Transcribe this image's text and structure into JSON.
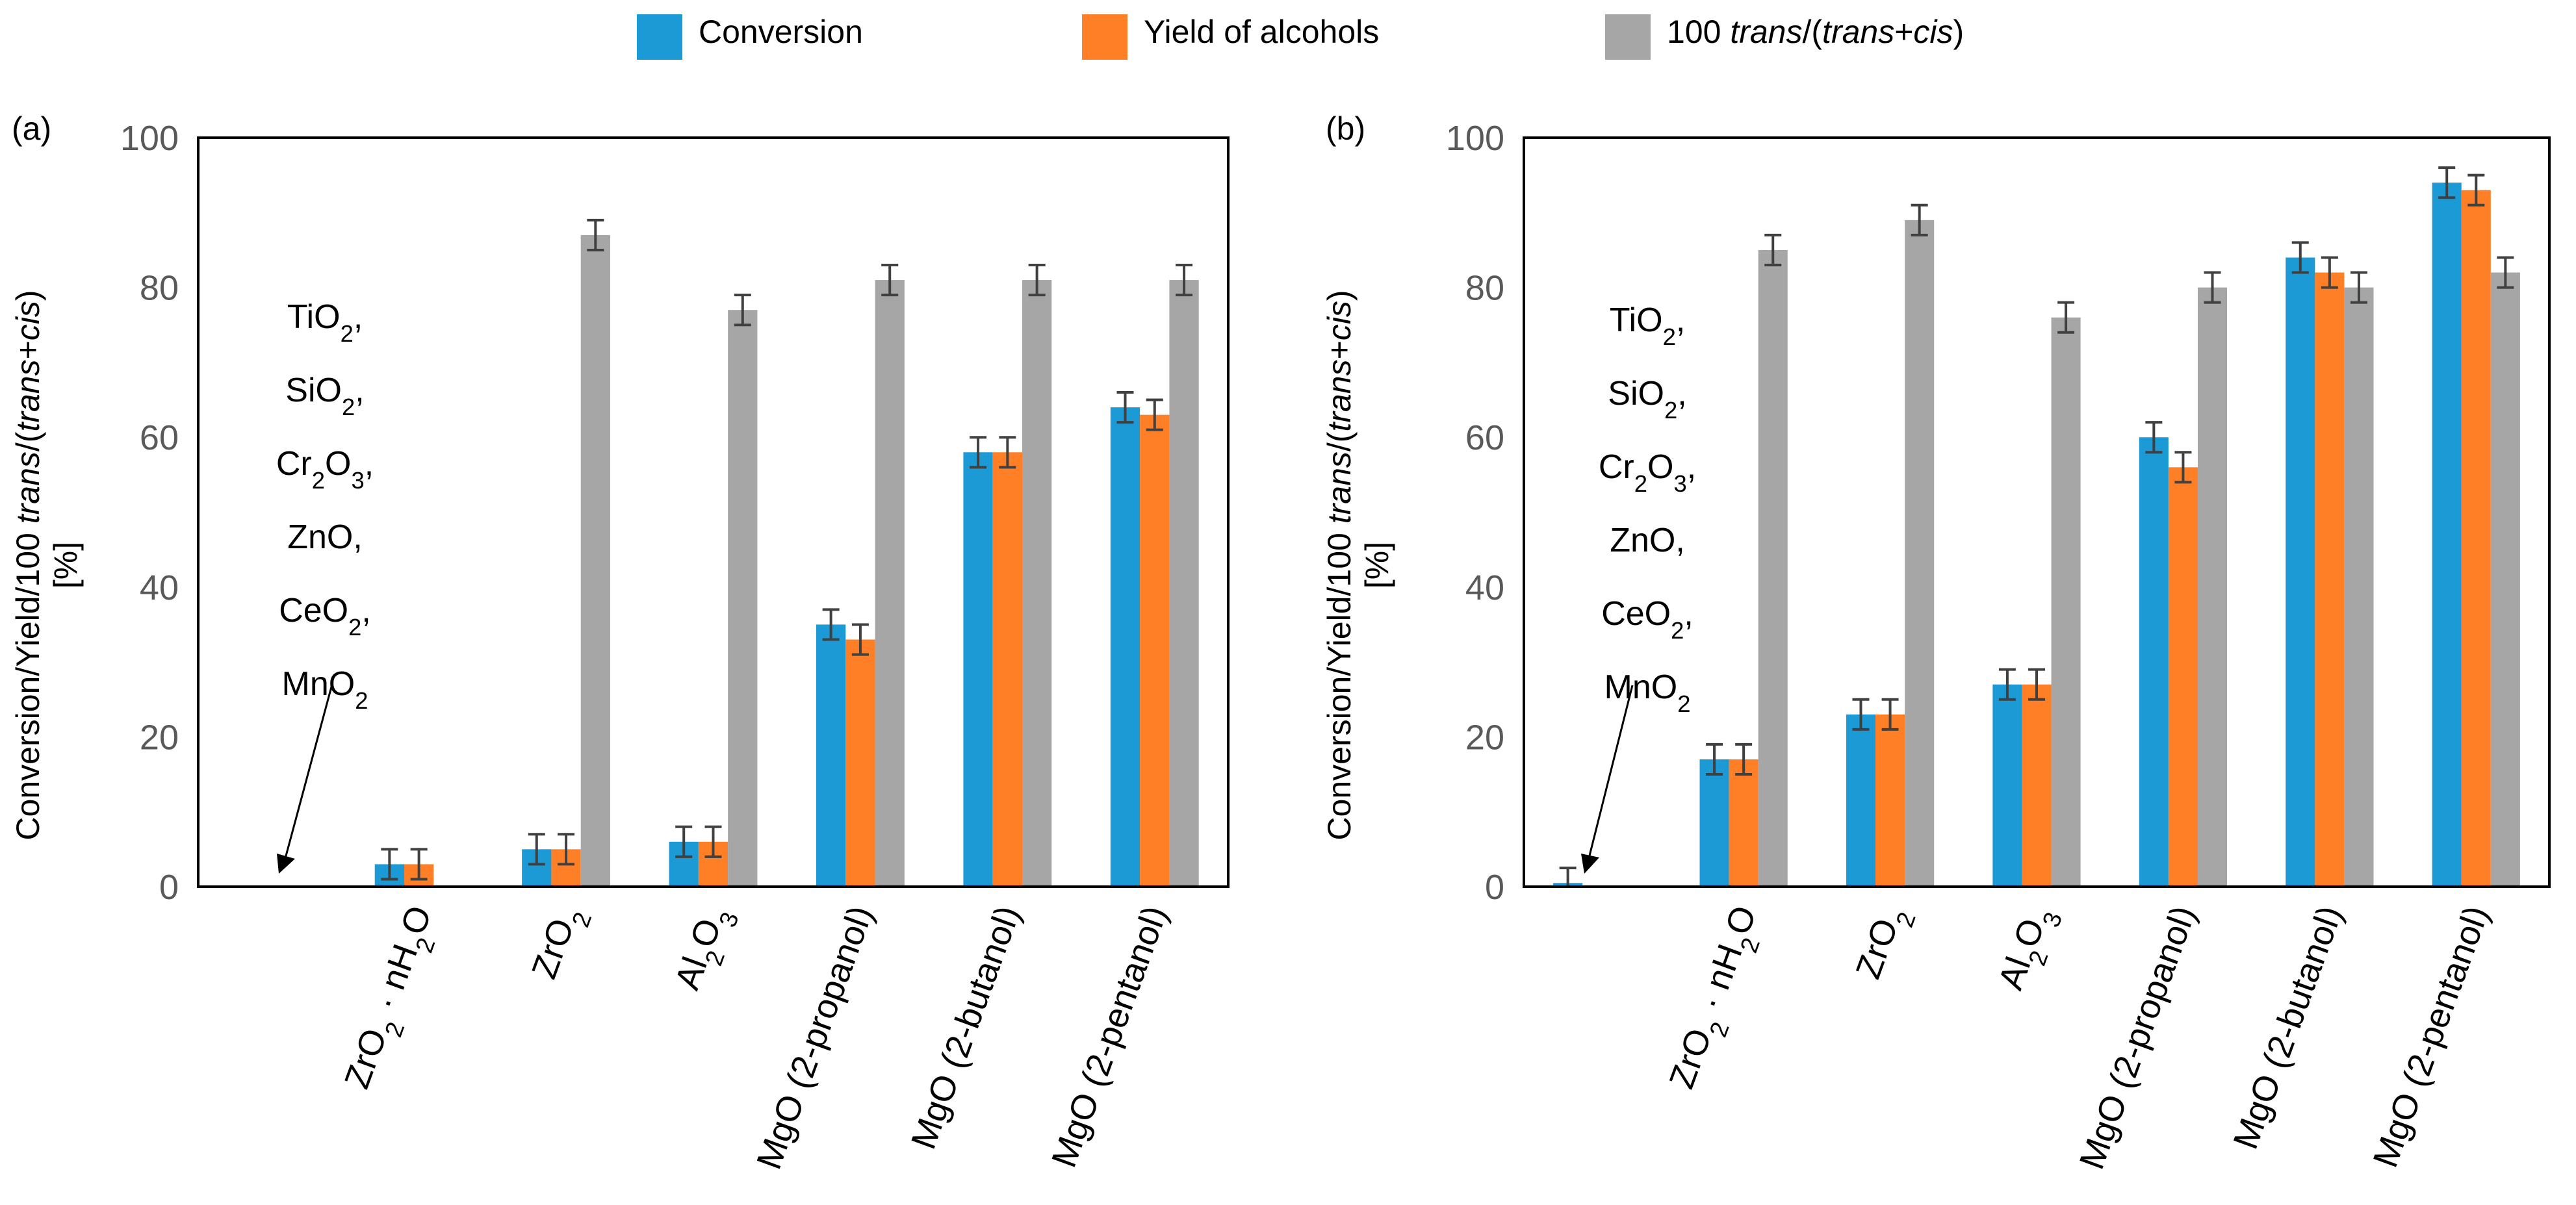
{
  "legend": [
    {
      "key": "conversion",
      "label": "Conversion",
      "color": "#1B9AD6"
    },
    {
      "key": "yield",
      "label": "Yield of alcohols",
      "color": "#FF7F27"
    },
    {
      "key": "ratio",
      "label_prefix": "100 ",
      "label_italic1": "trans",
      "label_mid": "/(",
      "label_italic2": "trans",
      "label_plus": "+",
      "label_italic3": "cis",
      "label_end": ")",
      "color": "#A6A6A6"
    }
  ],
  "chart_data": [
    {
      "type": "bar",
      "panel_label": "(a)",
      "ylabel_line1_prefix": "Conversion/Yield/100 ",
      "ylabel_line1_i1": "trans",
      "ylabel_line1_mid": "/(",
      "ylabel_line1_i2": "trans",
      "ylabel_line1_plus": "+",
      "ylabel_line1_i3": "cis",
      "ylabel_line1_end": ")",
      "ylabel_line2": "[%]",
      "ylim": [
        0,
        100
      ],
      "yticks": [
        "0",
        "20",
        "40",
        "60",
        "80",
        "100"
      ],
      "categories": [
        "",
        "ZrO2 · nH2O",
        "ZrO2",
        "Al2O3",
        "MgO (2-propanol)",
        "MgO (2-butanol)",
        "MgO (2-pentanol)"
      ],
      "category_parts": [
        [],
        [
          [
            "ZrO",
            false
          ],
          [
            "2",
            true
          ],
          [
            " · nH",
            false
          ],
          [
            "2",
            true
          ],
          [
            "O",
            false
          ]
        ],
        [
          [
            "ZrO",
            false
          ],
          [
            "2",
            true
          ]
        ],
        [
          [
            "Al",
            false
          ],
          [
            "2",
            true
          ],
          [
            "O",
            false
          ],
          [
            "3",
            true
          ]
        ],
        [
          [
            "MgO (2-propanol)",
            false
          ]
        ],
        [
          [
            "MgO (2-butanol)",
            false
          ]
        ],
        [
          [
            "MgO (2-pentanol)",
            false
          ]
        ]
      ],
      "series": [
        {
          "name": "Conversion",
          "values": [
            0,
            3,
            5,
            6,
            35,
            58,
            64
          ],
          "errors": [
            0,
            2,
            2,
            2,
            2,
            2,
            2
          ]
        },
        {
          "name": "Yield of alcohols",
          "values": [
            0,
            3,
            5,
            6,
            33,
            58,
            63
          ],
          "errors": [
            0,
            2,
            2,
            2,
            2,
            2,
            2
          ]
        },
        {
          "name": "100 trans/(trans+cis)",
          "values": [
            null,
            null,
            87,
            77,
            81,
            81,
            81
          ],
          "errors": [
            0,
            0,
            2,
            2,
            2,
            2,
            2
          ]
        }
      ],
      "annotation_lines": [
        "TiO2,",
        "SiO2,",
        "Cr2O3,",
        "ZnO,",
        "CeO2,",
        "MnO2"
      ],
      "annotation_parts": [
        [
          [
            "TiO",
            false
          ],
          [
            "2",
            true
          ],
          [
            ",",
            false
          ]
        ],
        [
          [
            "SiO",
            false
          ],
          [
            "2",
            true
          ],
          [
            ",",
            false
          ]
        ],
        [
          [
            "Cr",
            false
          ],
          [
            "2",
            true
          ],
          [
            "O",
            false
          ],
          [
            "3",
            true
          ],
          [
            ",",
            false
          ]
        ],
        [
          [
            "ZnO,",
            false
          ]
        ],
        [
          [
            "CeO",
            false
          ],
          [
            "2",
            true
          ],
          [
            ",",
            false
          ]
        ],
        [
          [
            "MnO",
            false
          ],
          [
            "2",
            true
          ]
        ]
      ]
    },
    {
      "type": "bar",
      "panel_label": "(b)",
      "ylabel_line1_prefix": "Conversion/Yield/100 ",
      "ylabel_line1_i1": "trans",
      "ylabel_line1_mid": "/(",
      "ylabel_line1_i2": "trans",
      "ylabel_line1_plus": "+",
      "ylabel_line1_i3": "cis",
      "ylabel_line1_end": ")",
      "ylabel_line2": "[%]",
      "ylim": [
        0,
        100
      ],
      "yticks": [
        "0",
        "20",
        "40",
        "60",
        "80",
        "100"
      ],
      "categories": [
        "",
        "ZrO2 · nH2O",
        "ZrO2",
        "Al2O3",
        "MgO (2-propanol)",
        "MgO (2-butanol)",
        "MgO (2-pentanol)"
      ],
      "category_parts": [
        [],
        [
          [
            "ZrO",
            false
          ],
          [
            "2",
            true
          ],
          [
            " · nH",
            false
          ],
          [
            "2",
            true
          ],
          [
            "O",
            false
          ]
        ],
        [
          [
            "ZrO",
            false
          ],
          [
            "2",
            true
          ]
        ],
        [
          [
            "Al",
            false
          ],
          [
            "2",
            true
          ],
          [
            "O",
            false
          ],
          [
            "3",
            true
          ]
        ],
        [
          [
            "MgO (2-propanol)",
            false
          ]
        ],
        [
          [
            "MgO (2-butanol)",
            false
          ]
        ],
        [
          [
            "MgO (2-pentanol)",
            false
          ]
        ]
      ],
      "series": [
        {
          "name": "Conversion",
          "values": [
            0.5,
            17,
            23,
            27,
            60,
            84,
            94
          ],
          "errors": [
            2,
            2,
            2,
            2,
            2,
            2,
            2
          ]
        },
        {
          "name": "Yield of alcohols",
          "values": [
            0,
            17,
            23,
            27,
            56,
            82,
            93
          ],
          "errors": [
            0,
            2,
            2,
            2,
            2,
            2,
            2
          ]
        },
        {
          "name": "100 trans/(trans+cis)",
          "values": [
            null,
            85,
            89,
            76,
            80,
            80,
            82
          ],
          "errors": [
            0,
            2,
            2,
            2,
            2,
            2,
            2
          ]
        }
      ],
      "annotation_lines": [
        "TiO2,",
        "SiO2,",
        "Cr2O3,",
        "ZnO,",
        "CeO2,",
        "MnO2"
      ],
      "annotation_parts": [
        [
          [
            "TiO",
            false
          ],
          [
            "2",
            true
          ],
          [
            ",",
            false
          ]
        ],
        [
          [
            "SiO",
            false
          ],
          [
            "2",
            true
          ],
          [
            ",",
            false
          ]
        ],
        [
          [
            "Cr",
            false
          ],
          [
            "2",
            true
          ],
          [
            "O",
            false
          ],
          [
            "3",
            true
          ],
          [
            ",",
            false
          ]
        ],
        [
          [
            "ZnO,",
            false
          ]
        ],
        [
          [
            "CeO",
            false
          ],
          [
            "2",
            true
          ],
          [
            ",",
            false
          ]
        ],
        [
          [
            "MnO",
            false
          ],
          [
            "2",
            true
          ]
        ]
      ]
    }
  ]
}
